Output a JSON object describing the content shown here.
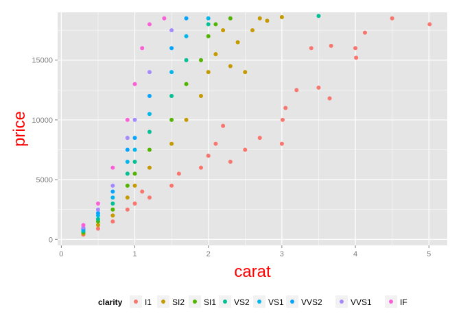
{
  "chart_data": {
    "type": "scatter",
    "title": "",
    "xlabel": "carat",
    "ylabel": "price",
    "xlim": [
      -0.05,
      5.25
    ],
    "ylim": [
      -500,
      19000
    ],
    "x_ticks": [
      0,
      1,
      2,
      3,
      4,
      5
    ],
    "x_tick_labels": [
      "0",
      "1",
      "2",
      "3",
      "4",
      "5"
    ],
    "y_ticks": [
      0,
      5000,
      10000,
      15000
    ],
    "y_tick_labels": [
      "0",
      "5000",
      "10000",
      "15000"
    ],
    "grid": true,
    "legend_position": "bottom",
    "legend_title": "clarity",
    "axis_title_color": "#ff0000",
    "panel_background": "#e5e5e5",
    "grid_color": "#ffffff",
    "series": [
      {
        "name": "I1",
        "color": "#f8766d",
        "points": [
          [
            0.3,
            400
          ],
          [
            0.5,
            900
          ],
          [
            0.7,
            1500
          ],
          [
            0.9,
            2500
          ],
          [
            1.0,
            3000
          ],
          [
            1.1,
            4000
          ],
          [
            1.2,
            3500
          ],
          [
            1.5,
            4500
          ],
          [
            1.6,
            5500
          ],
          [
            1.9,
            6000
          ],
          [
            2.0,
            7000
          ],
          [
            2.1,
            8000
          ],
          [
            2.2,
            9500
          ],
          [
            2.3,
            6500
          ],
          [
            2.5,
            7500
          ],
          [
            2.7,
            8500
          ],
          [
            3.0,
            8000
          ],
          [
            3.01,
            10000
          ],
          [
            3.05,
            11000
          ],
          [
            3.2,
            12500
          ],
          [
            3.4,
            16000
          ],
          [
            3.5,
            12700
          ],
          [
            3.65,
            11800
          ],
          [
            3.67,
            16200
          ],
          [
            4.0,
            16000
          ],
          [
            4.01,
            15200
          ],
          [
            4.13,
            17300
          ],
          [
            4.5,
            18500
          ],
          [
            5.01,
            18000
          ]
        ]
      },
      {
        "name": "SI2",
        "color": "#c49a00",
        "points": [
          [
            0.3,
            500
          ],
          [
            0.5,
            1200
          ],
          [
            0.7,
            2000
          ],
          [
            0.9,
            3500
          ],
          [
            1.0,
            4500
          ],
          [
            1.2,
            6000
          ],
          [
            1.5,
            8000
          ],
          [
            1.7,
            10000
          ],
          [
            1.9,
            12000
          ],
          [
            2.0,
            14000
          ],
          [
            2.1,
            15500
          ],
          [
            2.2,
            17500
          ],
          [
            2.4,
            16500
          ],
          [
            2.6,
            17500
          ],
          [
            2.8,
            18300
          ],
          [
            3.0,
            18600
          ],
          [
            2.3,
            14500
          ],
          [
            2.5,
            14000
          ],
          [
            2.7,
            18500
          ]
        ]
      },
      {
        "name": "SI1",
        "color": "#53b400",
        "points": [
          [
            0.3,
            600
          ],
          [
            0.5,
            1500
          ],
          [
            0.7,
            2500
          ],
          [
            0.9,
            4500
          ],
          [
            1.0,
            5500
          ],
          [
            1.2,
            7500
          ],
          [
            1.5,
            10000
          ],
          [
            1.7,
            13000
          ],
          [
            1.9,
            15000
          ],
          [
            2.0,
            17000
          ],
          [
            2.1,
            18000
          ],
          [
            2.3,
            18500
          ]
        ]
      },
      {
        "name": "VS2",
        "color": "#00c094",
        "points": [
          [
            0.3,
            700
          ],
          [
            0.5,
            1700
          ],
          [
            0.7,
            3000
          ],
          [
            0.9,
            5500
          ],
          [
            1.0,
            6500
          ],
          [
            1.2,
            9000
          ],
          [
            1.5,
            12000
          ],
          [
            1.7,
            15000
          ],
          [
            2.0,
            18000
          ],
          [
            3.5,
            18700
          ]
        ]
      },
      {
        "name": "VS1",
        "color": "#00b6eb",
        "points": [
          [
            0.3,
            800
          ],
          [
            0.5,
            2000
          ],
          [
            0.7,
            3500
          ],
          [
            0.9,
            6500
          ],
          [
            1.0,
            7500
          ],
          [
            1.2,
            10500
          ],
          [
            1.5,
            14000
          ],
          [
            1.7,
            17000
          ],
          [
            2.0,
            18500
          ]
        ]
      },
      {
        "name": "VVS2",
        "color": "#06a4ff",
        "points": [
          [
            0.3,
            900
          ],
          [
            0.5,
            2200
          ],
          [
            0.7,
            4000
          ],
          [
            0.9,
            7500
          ],
          [
            1.0,
            8500
          ],
          [
            1.2,
            12000
          ],
          [
            1.5,
            16000
          ],
          [
            1.7,
            18500
          ]
        ]
      },
      {
        "name": "VVS1",
        "color": "#a58aff",
        "points": [
          [
            0.3,
            1000
          ],
          [
            0.5,
            2500
          ],
          [
            0.7,
            4500
          ],
          [
            0.9,
            8500
          ],
          [
            1.0,
            10000
          ],
          [
            1.2,
            14000
          ],
          [
            1.5,
            17500
          ]
        ]
      },
      {
        "name": "IF",
        "color": "#fb61d7",
        "points": [
          [
            0.3,
            1200
          ],
          [
            0.5,
            3000
          ],
          [
            0.7,
            6000
          ],
          [
            0.9,
            10000
          ],
          [
            1.0,
            13000
          ],
          [
            1.1,
            16000
          ],
          [
            1.2,
            18000
          ],
          [
            1.4,
            18500
          ]
        ]
      }
    ]
  }
}
